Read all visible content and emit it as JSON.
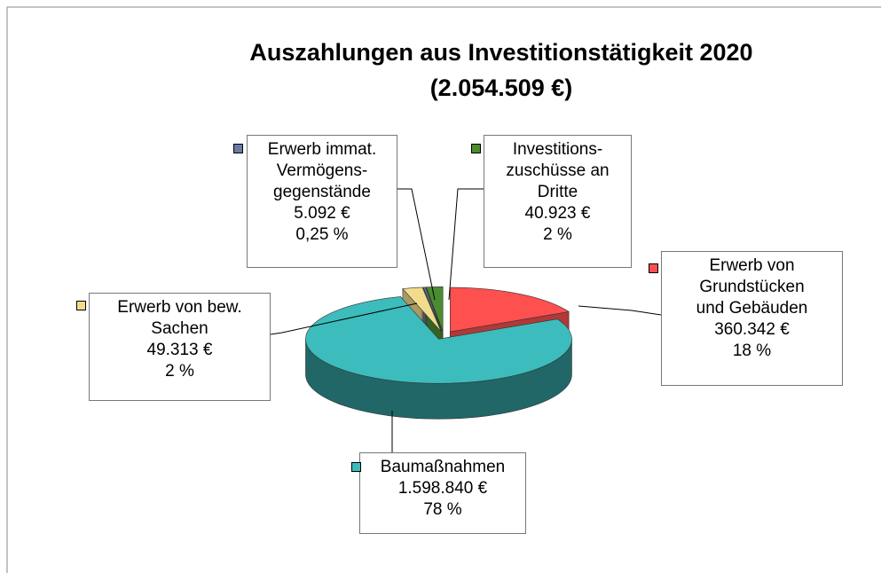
{
  "chart_data": {
    "type": "pie3d",
    "title": "Auszahlungen aus Investitionstätigkeit 2020",
    "subtitle": "(2.054.509 €)",
    "categories": [
      "Erwerb von\nGrundstücken\nund Gebäuden",
      "Baumaßnahmen",
      "Erwerb von bew.\nSachen",
      "Erwerb immat.\nVermögens-\ngegenstände",
      "Investitions-\nzuschüsse an\nDritte"
    ],
    "values": [
      360342,
      1598840,
      49313,
      5092,
      40923
    ],
    "value_labels": [
      "360.342 €",
      "1.598.840 €",
      "49.313 €",
      "5.092 €",
      "40.923 €"
    ],
    "percentages": [
      18,
      78,
      2,
      0.25,
      2
    ],
    "percent_labels": [
      "18 %",
      "78 %",
      "2 %",
      "0,25 %",
      "2 %"
    ],
    "colors": [
      "#ff5050",
      "#3cbcbc",
      "#f0dc8c",
      "#6a7aa0",
      "#4c8c30"
    ]
  }
}
